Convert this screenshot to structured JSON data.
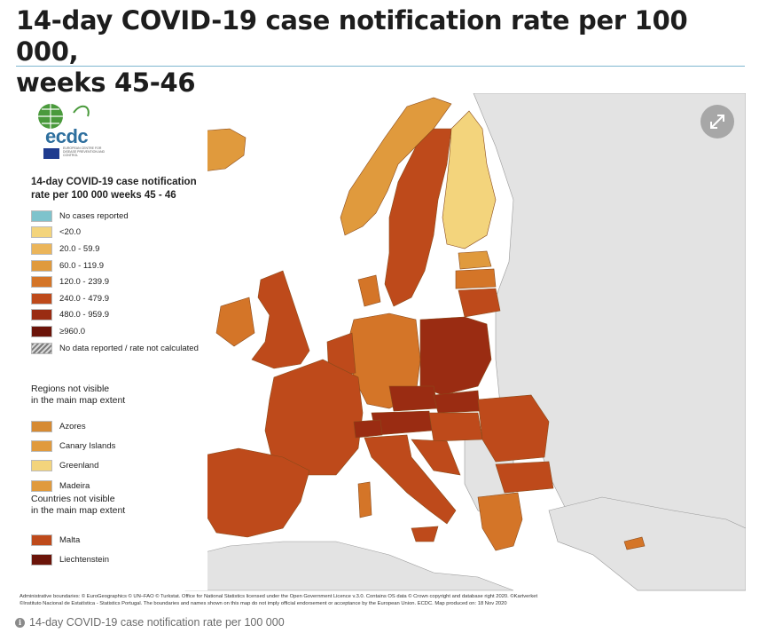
{
  "page": {
    "title_line1": "14-day COVID-19 case notification rate per 100 000,",
    "title_line2": "weeks 45-46"
  },
  "map": {
    "logo": {
      "name": "ecdc",
      "subtitle": "EUROPEAN CENTRE FOR DISEASE PREVENTION AND CONTROL"
    },
    "legend": {
      "title_line1": "14-day COVID-19 case notification",
      "title_line2": "rate per 100 000 weeks 45 - 46",
      "items": [
        {
          "label": "No cases reported",
          "color": "#7ec3cc"
        },
        {
          "label": "<20.0",
          "color": "#f3d47c"
        },
        {
          "label": "20.0 - 59.9",
          "color": "#ebb55a"
        },
        {
          "label": "60.0 - 119.9",
          "color": "#e09a3d"
        },
        {
          "label": "120.0 - 239.9",
          "color": "#d47528"
        },
        {
          "label": "240.0 - 479.9",
          "color": "#be4a1b"
        },
        {
          "label": "480.0 - 959.9",
          "color": "#9a2c12"
        },
        {
          "label": "≥960.0",
          "color": "#6b1409"
        },
        {
          "label": "No data reported / rate not calculated",
          "color": "hatch"
        }
      ],
      "regions_heading_line1": "Regions not visible",
      "regions_heading_line2": "in the main map extent",
      "regions": [
        {
          "label": "Azores",
          "color": "#d68a32"
        },
        {
          "label": "Canary Islands",
          "color": "#e09a3d"
        },
        {
          "label": "Greenland",
          "color": "#f3d47c"
        },
        {
          "label": "Madeira",
          "color": "#e09a3d"
        }
      ],
      "countries_heading_line1": "Countries not visible",
      "countries_heading_line2": "in the main map extent",
      "countries": [
        {
          "label": "Malta",
          "color": "#be4a1b"
        },
        {
          "label": "Liechtenstein",
          "color": "#6b1409"
        }
      ]
    },
    "footnote_line1": "Administrative boundaries: © EuroGeographics © UN–FAO © Turkstat. Office for National Statistics licensed under the Open Government Licence v.3.0. Contains OS data © Crown copyright and database right 2020. ©Kartverket",
    "footnote_line2": "©Instituto Nacional de Estatística - Statistics Portugal. The boundaries and names shown on this map do not imply official endorsement or acceptance by the European Union. ECDC. Map produced on: 18 Nov 2020",
    "expand_icon": "expand-arrows-icon"
  },
  "caption": {
    "text": "14-day COVID-19 case notification rate per 100 000",
    "icon": "info-icon"
  }
}
